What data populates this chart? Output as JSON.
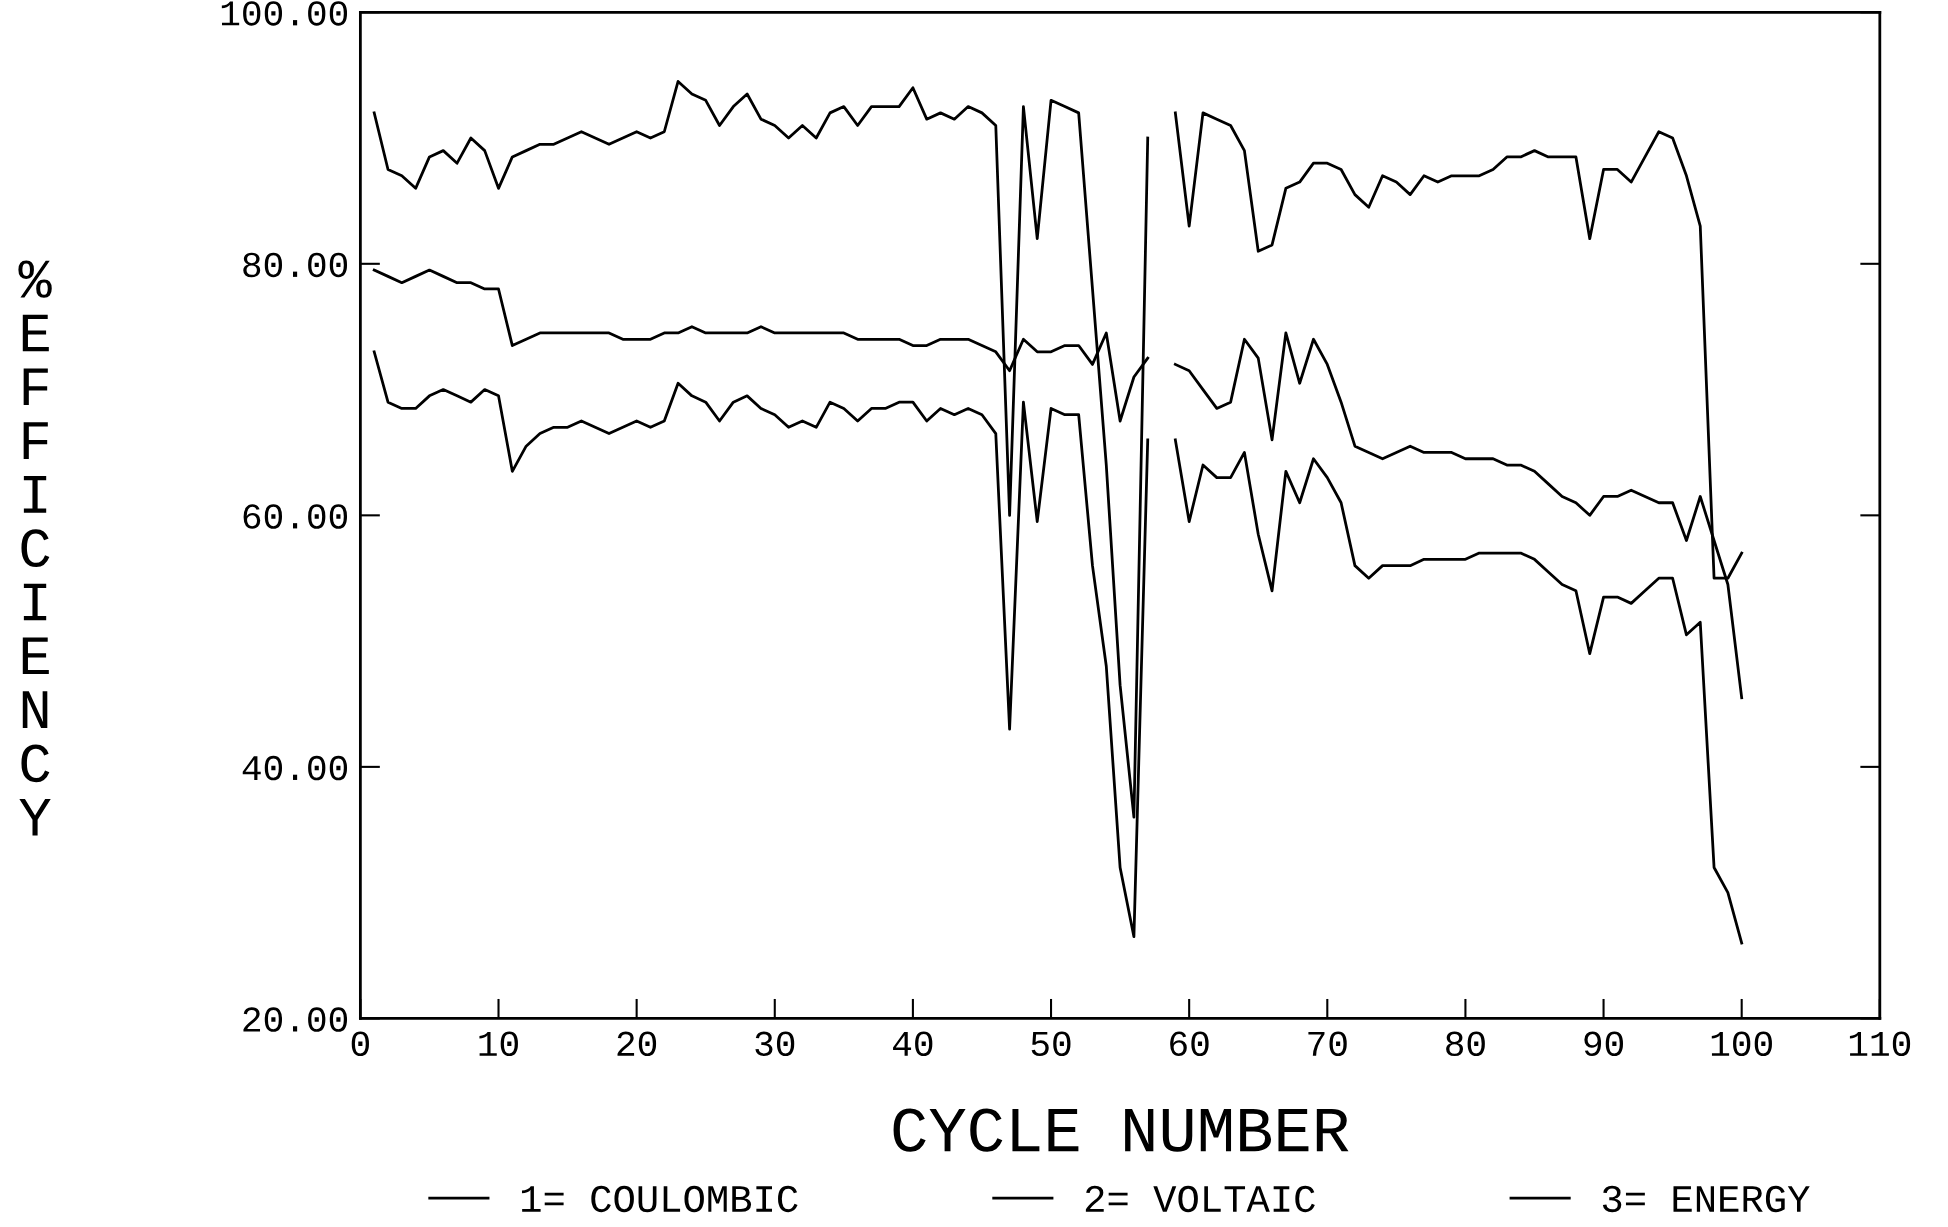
{
  "chart_data": {
    "type": "line",
    "xlabel": "CYCLE NUMBER",
    "ylabel": "% EFFICIENCY",
    "x": [
      1,
      2,
      3,
      4,
      5,
      6,
      7,
      8,
      9,
      10,
      11,
      12,
      13,
      14,
      15,
      16,
      17,
      18,
      19,
      20,
      21,
      22,
      23,
      24,
      25,
      26,
      27,
      28,
      29,
      30,
      31,
      32,
      33,
      34,
      35,
      36,
      37,
      38,
      39,
      40,
      41,
      42,
      43,
      44,
      45,
      46,
      47,
      48,
      49,
      50,
      51,
      52,
      53,
      54,
      55,
      56,
      57,
      58,
      59,
      60,
      61,
      62,
      63,
      64,
      65,
      66,
      67,
      68,
      69,
      70,
      71,
      72,
      73,
      74,
      75,
      76,
      77,
      78,
      79,
      80,
      81,
      82,
      83,
      84,
      85,
      86,
      87,
      88,
      89,
      90,
      91,
      92,
      93,
      94,
      95,
      96,
      97,
      98,
      99,
      100
    ],
    "series": [
      {
        "name": "1= COULOMBIC",
        "color": "#000000",
        "values": [
          92,
          87.5,
          87,
          86,
          88.5,
          89,
          88,
          90,
          89,
          86,
          88.5,
          89,
          89.5,
          89.5,
          90,
          90.5,
          90,
          89.5,
          90,
          90.5,
          90,
          90.5,
          94.5,
          93.5,
          93,
          91,
          92.5,
          93.5,
          91.5,
          91,
          90,
          91,
          90,
          92,
          92.5,
          91,
          92.5,
          92.5,
          92.5,
          94,
          91.5,
          92,
          91.5,
          92.5,
          92,
          91,
          60,
          92.5,
          82,
          93,
          92.5,
          92,
          78,
          64,
          46.5,
          36,
          90,
          null,
          92,
          83,
          92,
          91.5,
          91,
          89,
          81,
          81.5,
          86,
          86.5,
          88,
          88,
          87.5,
          85.5,
          84.5,
          87,
          86.5,
          85.5,
          87,
          86.5,
          87,
          87,
          87,
          87.5,
          88.5,
          88.5,
          89,
          88.5,
          88.5,
          88.5,
          82,
          87.5,
          87.5,
          86.5,
          88.5,
          90.5,
          90,
          87,
          83,
          55,
          55,
          57
        ]
      },
      {
        "name": "2= VOLTAIC",
        "color": "#000000",
        "values": [
          79.5,
          79,
          78.5,
          79,
          79.5,
          79,
          78.5,
          78.5,
          78,
          78,
          73.5,
          74,
          74.5,
          74.5,
          74.5,
          74.5,
          74.5,
          74.5,
          74,
          74,
          74,
          74.5,
          74.5,
          75,
          74.5,
          74.5,
          74.5,
          74.5,
          75,
          74.5,
          74.5,
          74.5,
          74.5,
          74.5,
          74.5,
          74,
          74,
          74,
          74,
          73.5,
          73.5,
          74,
          74,
          74,
          73.5,
          73,
          71.5,
          74,
          73,
          73,
          73.5,
          73.5,
          72,
          74.5,
          67.5,
          71,
          72.5,
          null,
          72,
          71.5,
          70,
          68.5,
          69,
          74,
          72.5,
          66,
          74.5,
          70.5,
          74,
          72,
          69,
          65.5,
          65,
          64.5,
          65,
          65.5,
          65,
          65,
          65,
          64.5,
          64.5,
          64.5,
          64,
          64,
          63.5,
          62.5,
          61.5,
          61,
          60,
          61.5,
          61.5,
          62,
          61.5,
          61,
          61,
          58,
          61.5,
          58,
          54.5,
          45.5
        ]
      },
      {
        "name": "3= ENERGY",
        "color": "#000000",
        "values": [
          73,
          69,
          68.5,
          68.5,
          69.5,
          70,
          69.5,
          69,
          70,
          69.5,
          63.5,
          65.5,
          66.5,
          67,
          67,
          67.5,
          67,
          66.5,
          67,
          67.5,
          67,
          67.5,
          70.5,
          69.5,
          69,
          67.5,
          69,
          69.5,
          68.5,
          68,
          67,
          67.5,
          67,
          69,
          68.5,
          67.5,
          68.5,
          68.5,
          69,
          69,
          67.5,
          68.5,
          68,
          68.5,
          68,
          66.5,
          43,
          69,
          59.5,
          68.5,
          68,
          68,
          56,
          48,
          32,
          26.5,
          66,
          null,
          66,
          59.5,
          64,
          63,
          63,
          65,
          58.5,
          54,
          63.5,
          61,
          64.5,
          63,
          61,
          56,
          55,
          56,
          56,
          56,
          56.5,
          56.5,
          56.5,
          56.5,
          57,
          57,
          57,
          57,
          56.5,
          55.5,
          54.5,
          54,
          49,
          53.5,
          53.5,
          53,
          54,
          55,
          55,
          50.5,
          51.5,
          32,
          30,
          26
        ]
      }
    ],
    "xlim": [
      0,
      110
    ],
    "xticks": [
      0,
      10,
      20,
      30,
      40,
      50,
      60,
      70,
      80,
      90,
      100,
      110
    ],
    "ylim": [
      20,
      100
    ],
    "yticks": [
      {
        "value": 20,
        "label": "20.00"
      },
      {
        "value": 40,
        "label": "40.00"
      },
      {
        "value": 60,
        "label": "60.00"
      },
      {
        "value": 80,
        "label": "80.00"
      },
      {
        "value": 100,
        "label": "100.00"
      }
    ],
    "legend": "bottom",
    "line_style": "solid"
  }
}
